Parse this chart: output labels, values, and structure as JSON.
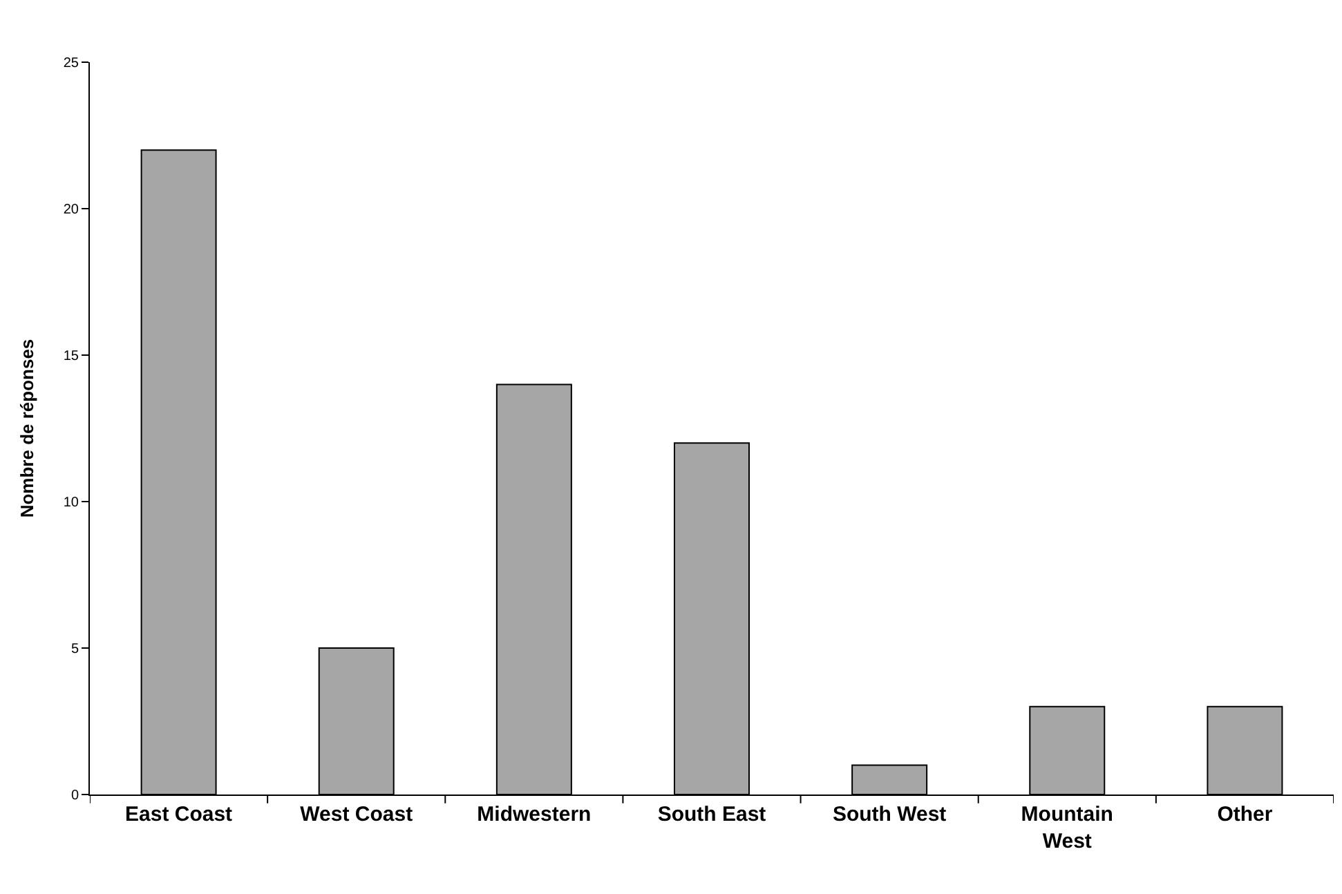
{
  "chart_data": {
    "type": "bar",
    "ylabel": "Nombre de réponses",
    "categories": [
      "East Coast",
      "West Coast",
      "Midwestern",
      "South East",
      "South West",
      "Mountain West",
      "Other"
    ],
    "values": [
      22,
      5,
      14,
      12,
      1,
      3,
      3
    ],
    "color": "#a6a6a6",
    "ylim": [
      0,
      25
    ],
    "yticks": [
      0,
      5,
      10,
      15,
      20,
      25
    ],
    "grid": false
  }
}
